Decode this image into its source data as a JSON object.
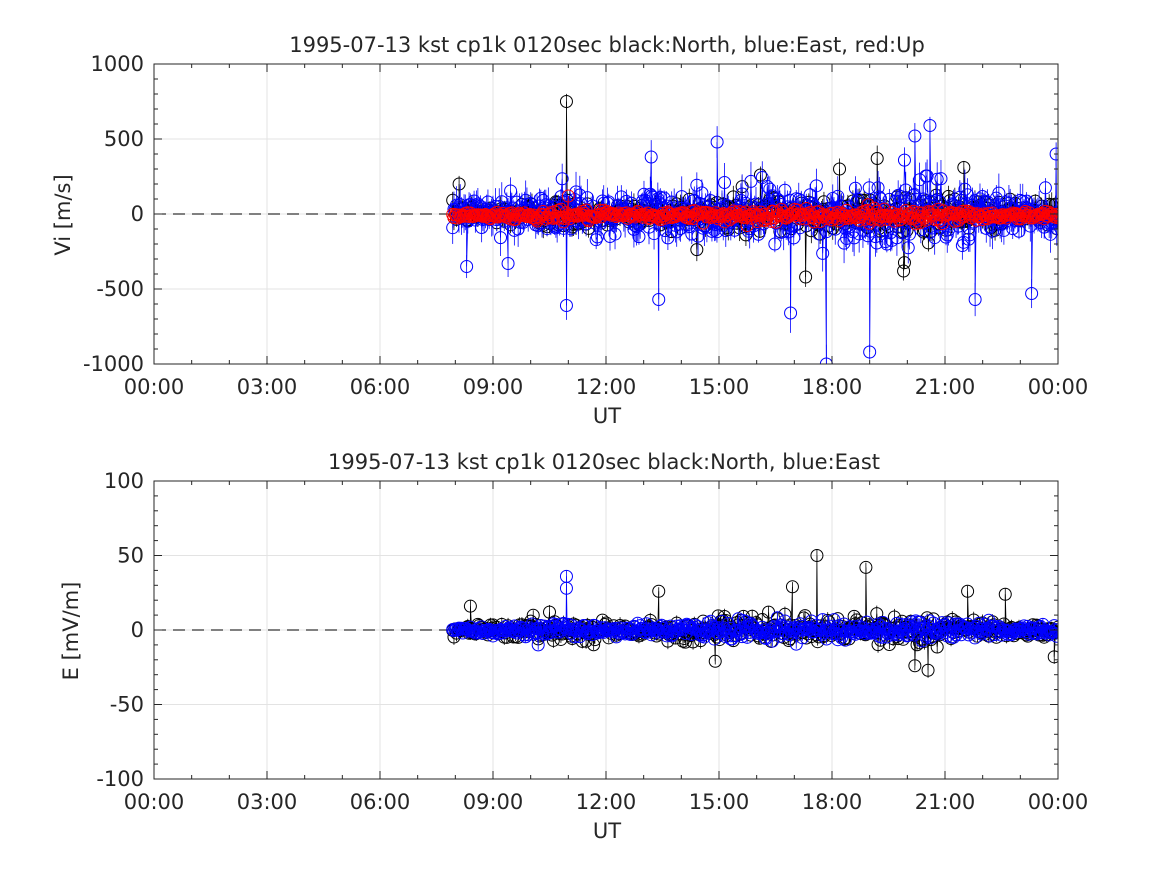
{
  "chart_data": [
    {
      "type": "scatter",
      "title": "1995-07-13 kst cp1k 0120sec black:North, blue:East, red:Up",
      "xlabel": "UT",
      "ylabel": "Vi [m/s]",
      "xlim_hours": [
        0,
        24
      ],
      "ylim": [
        -1000,
        1000
      ],
      "xticks": [
        "00:00",
        "03:00",
        "06:00",
        "09:00",
        "12:00",
        "15:00",
        "18:00",
        "21:00",
        "00:00"
      ],
      "yticks": [
        1000,
        500,
        0,
        -500,
        -1000
      ],
      "grid": true,
      "baseline": {
        "value": 0,
        "style": "dashed",
        "from_hour": 0,
        "to_hour": 7.9
      },
      "data_span_hours": [
        7.93,
        24.0
      ],
      "series": [
        {
          "name": "North",
          "color": "#000000",
          "marker": "circle",
          "approx_spread": 110,
          "highlights": [
            {
              "x": 8.1,
              "y": 200
            },
            {
              "x": 10.95,
              "y": 750
            },
            {
              "x": 16.1,
              "y": 260
            },
            {
              "x": 18.2,
              "y": 300
            },
            {
              "x": 19.2,
              "y": 370
            },
            {
              "x": 21.5,
              "y": 310
            },
            {
              "x": 17.3,
              "y": -420
            },
            {
              "x": 19.9,
              "y": -380
            }
          ]
        },
        {
          "name": "East",
          "color": "#0000ff",
          "marker": "circle",
          "approx_spread": 170,
          "highlights": [
            {
              "x": 8.3,
              "y": -350
            },
            {
              "x": 9.4,
              "y": -330
            },
            {
              "x": 10.95,
              "y": -610
            },
            {
              "x": 13.4,
              "y": -570
            },
            {
              "x": 13.2,
              "y": 380
            },
            {
              "x": 14.95,
              "y": 480
            },
            {
              "x": 16.9,
              "y": -660
            },
            {
              "x": 17.85,
              "y": -1000
            },
            {
              "x": 19.0,
              "y": -920
            },
            {
              "x": 20.2,
              "y": 520
            },
            {
              "x": 20.6,
              "y": 590
            },
            {
              "x": 21.8,
              "y": -570
            },
            {
              "x": 23.3,
              "y": -530
            },
            {
              "x": 23.95,
              "y": 400
            }
          ]
        },
        {
          "name": "Up",
          "color": "#ff0000",
          "marker": "circle",
          "approx_spread": 35,
          "highlights": [
            {
              "x": 11.0,
              "y": 120
            }
          ]
        }
      ]
    },
    {
      "type": "scatter",
      "title": "1995-07-13 kst cp1k 0120sec black:North, blue:East",
      "xlabel": "UT",
      "ylabel": "E [mV/m]",
      "xlim_hours": [
        0,
        24
      ],
      "ylim": [
        -100,
        100
      ],
      "xticks": [
        "00:00",
        "03:00",
        "06:00",
        "09:00",
        "12:00",
        "15:00",
        "18:00",
        "21:00",
        "00:00"
      ],
      "yticks": [
        100,
        50,
        0,
        -50,
        -100
      ],
      "grid": true,
      "baseline": {
        "value": 0,
        "style": "dashed",
        "from_hour": 0,
        "to_hour": 7.9
      },
      "data_span_hours": [
        7.93,
        24.0
      ],
      "series": [
        {
          "name": "North",
          "color": "#000000",
          "marker": "circle",
          "approx_spread": 7,
          "highlights": [
            {
              "x": 8.4,
              "y": 16
            },
            {
              "x": 10.5,
              "y": 12
            },
            {
              "x": 13.4,
              "y": 26
            },
            {
              "x": 14.9,
              "y": -21
            },
            {
              "x": 16.95,
              "y": 29
            },
            {
              "x": 17.6,
              "y": 50
            },
            {
              "x": 18.9,
              "y": 42
            },
            {
              "x": 20.2,
              "y": -24
            },
            {
              "x": 20.55,
              "y": -27
            },
            {
              "x": 21.6,
              "y": 26
            },
            {
              "x": 22.6,
              "y": 24
            },
            {
              "x": 23.9,
              "y": -18
            }
          ]
        },
        {
          "name": "East",
          "color": "#0000ff",
          "marker": "circle",
          "approx_spread": 5,
          "highlights": [
            {
              "x": 10.95,
              "y": 36
            },
            {
              "x": 10.95,
              "y": 28
            },
            {
              "x": 10.2,
              "y": -10
            }
          ]
        }
      ]
    }
  ]
}
